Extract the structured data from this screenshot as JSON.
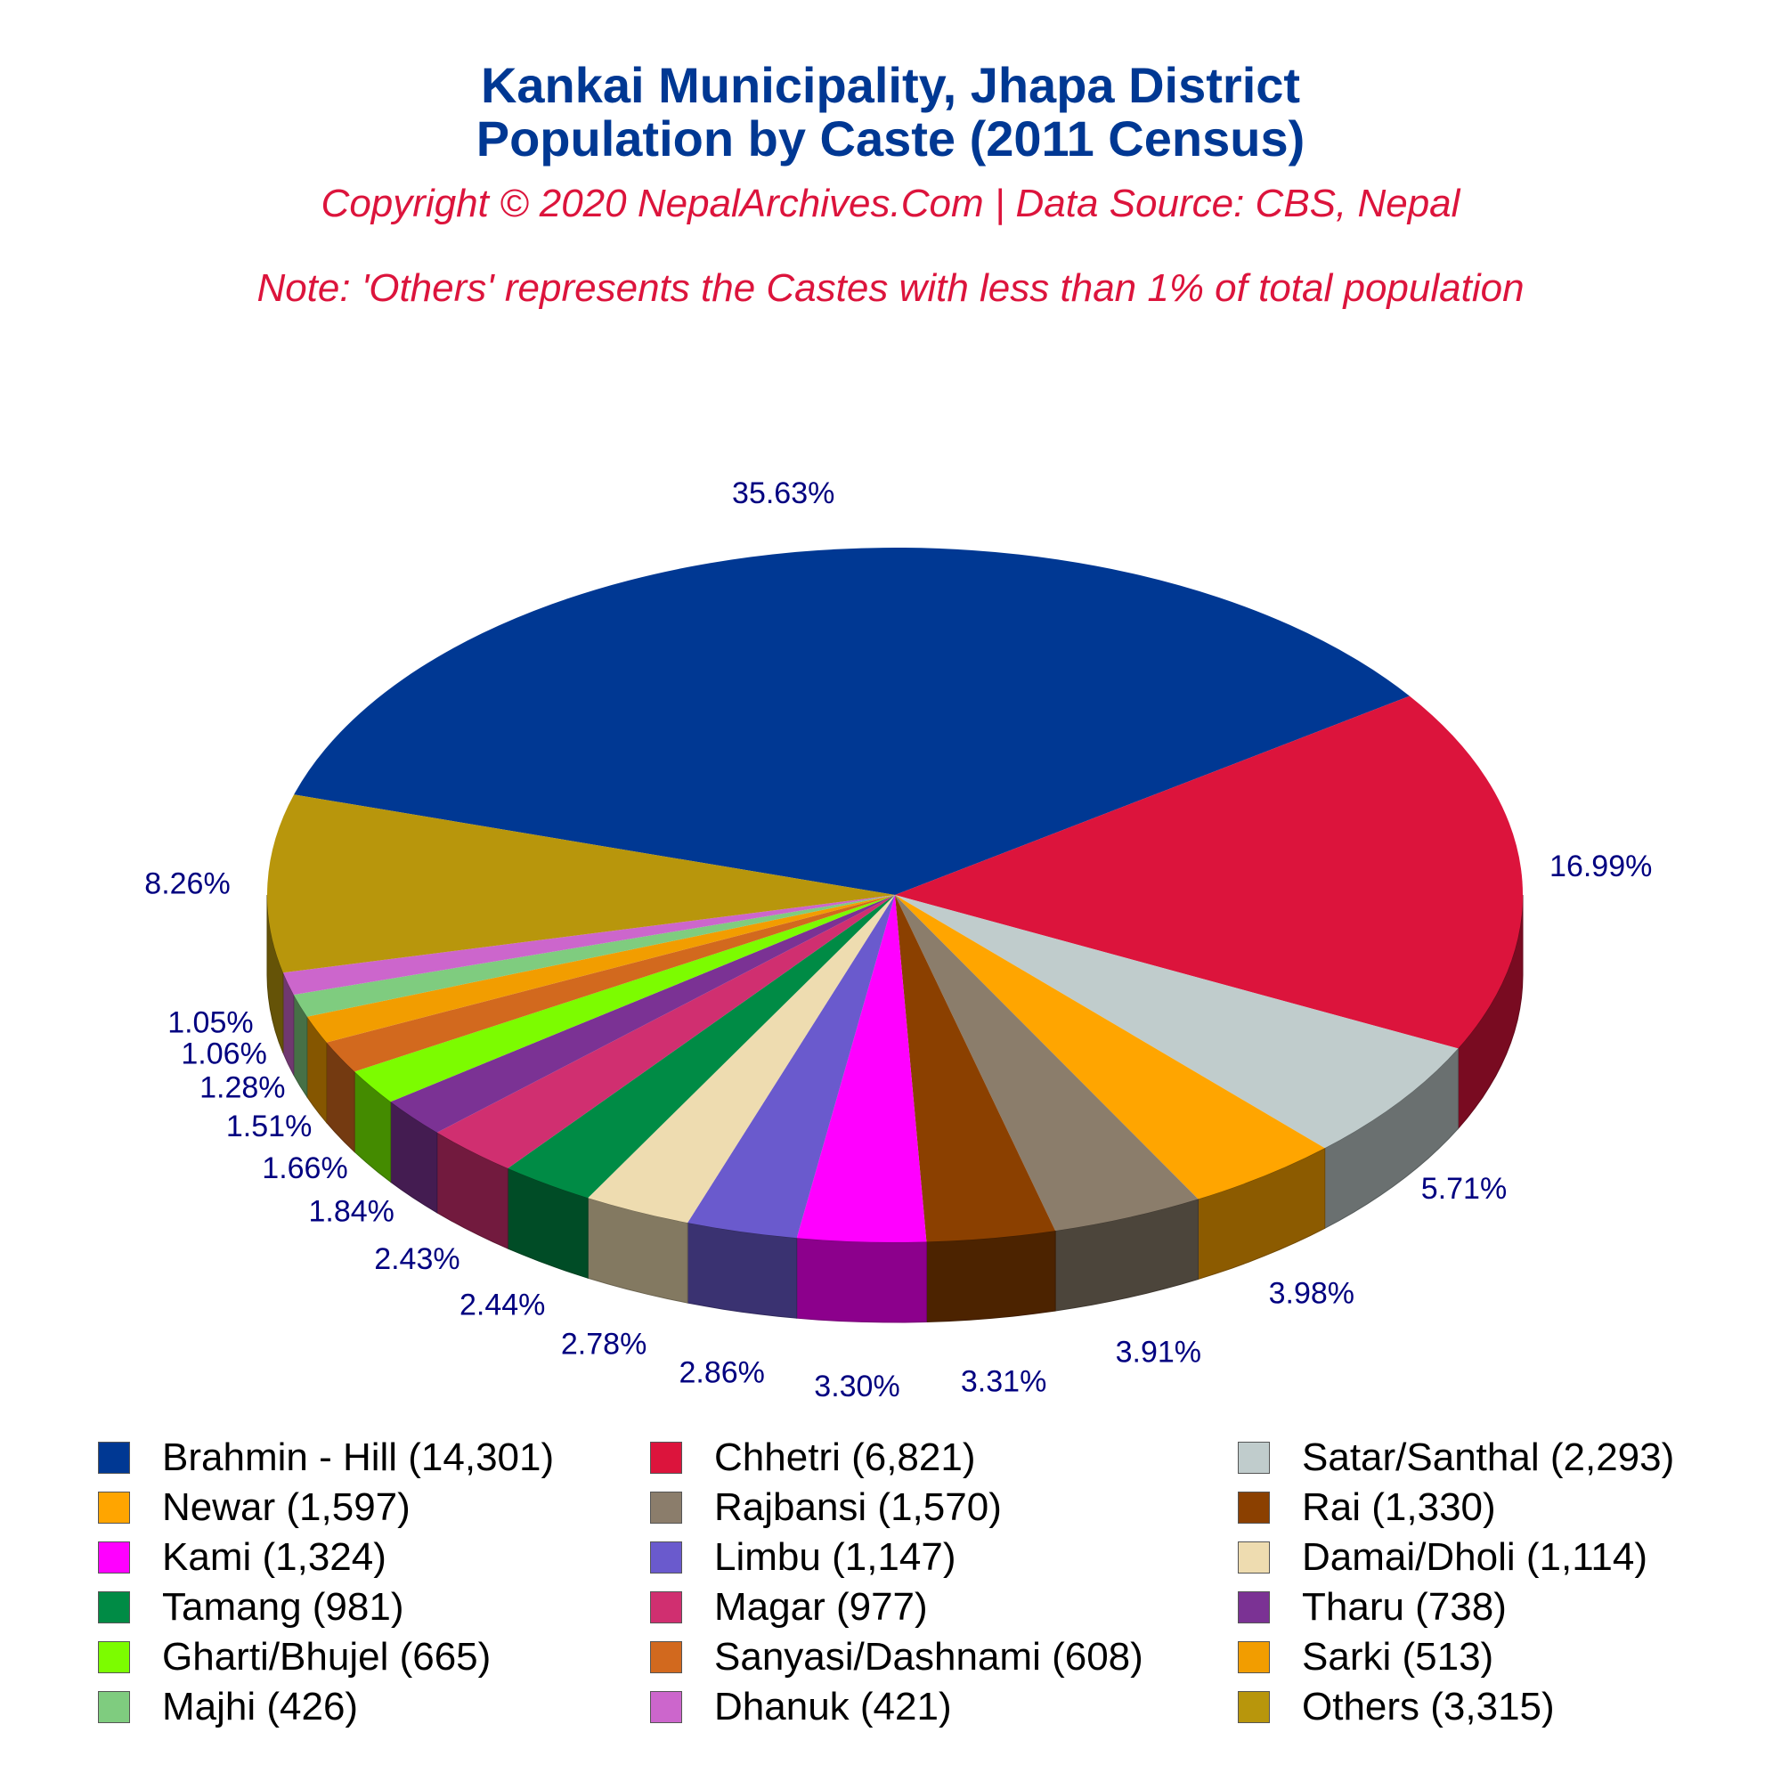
{
  "chart_data": {
    "type": "pie",
    "title": "Kankai Municipality, Jhapa District",
    "subtitle": "Population by Caste (2011 Census)",
    "copyright": "Copyright © 2020 NepalArchives.Com | Data Source: CBS, Nepal",
    "note": "Note: 'Others' represents the Castes with less than 1% of total population",
    "slices": [
      {
        "label": "Brahmin - Hill (14,301)",
        "value": 14301,
        "percent": "35.63%",
        "color": "#003893"
      },
      {
        "label": "Chhetri (6,821)",
        "value": 6821,
        "percent": "16.99%",
        "color": "#DC143C"
      },
      {
        "label": "Satar/Santhal (2,293)",
        "value": 2293,
        "percent": "5.71%",
        "color": "#C0CCCC"
      },
      {
        "label": "Newar (1,597)",
        "value": 1597,
        "percent": "3.98%",
        "color": "#FFA500"
      },
      {
        "label": "Rajbansi (1,570)",
        "value": 1570,
        "percent": "3.91%",
        "color": "#8B7D6B"
      },
      {
        "label": "Rai (1,330)",
        "value": 1330,
        "percent": "3.31%",
        "color": "#8B4000"
      },
      {
        "label": "Kami (1,324)",
        "value": 1324,
        "percent": "3.30%",
        "color": "#FF00FF"
      },
      {
        "label": "Limbu (1,147)",
        "value": 1147,
        "percent": "2.86%",
        "color": "#6A5ACD"
      },
      {
        "label": "Damai/Dholi (1,114)",
        "value": 1114,
        "percent": "2.78%",
        "color": "#EEDCB0"
      },
      {
        "label": "Tamang (981)",
        "value": 981,
        "percent": "2.44%",
        "color": "#008B45"
      },
      {
        "label": "Magar (977)",
        "value": 977,
        "percent": "2.43%",
        "color": "#D02F70"
      },
      {
        "label": "Tharu (738)",
        "value": 738,
        "percent": "1.84%",
        "color": "#7B3294"
      },
      {
        "label": "Gharti/Bhujel (665)",
        "value": 665,
        "percent": "1.66%",
        "color": "#7CFC00"
      },
      {
        "label": "Sanyasi/Dashnami (608)",
        "value": 608,
        "percent": "1.51%",
        "color": "#D2691E"
      },
      {
        "label": "Sarki (513)",
        "value": 513,
        "percent": "1.28%",
        "color": "#F29D00"
      },
      {
        "label": "Majhi (426)",
        "value": 426,
        "percent": "1.06%",
        "color": "#7FCC7F"
      },
      {
        "label": "Dhanuk (421)",
        "value": 421,
        "percent": "1.05%",
        "color": "#CC66CC"
      },
      {
        "label": "Others (3,315)",
        "value": 3315,
        "percent": "8.26%",
        "color": "#B8960C"
      }
    ],
    "colors": {
      "title": "#003893",
      "subtitle": "#DC143C",
      "value_labels": "#000080"
    }
  }
}
